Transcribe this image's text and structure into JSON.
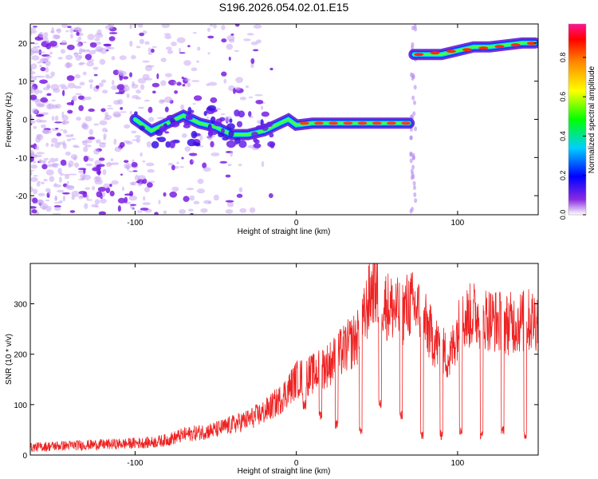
{
  "figure_title": "S196.2026.054.02.01.E15",
  "colors": {
    "snr_line": "#ee2222",
    "axis": "#000000",
    "background": "#ffffff"
  },
  "chart_data": [
    {
      "type": "heatmap",
      "title": "S196.2026.054.02.01.E15",
      "xlabel": "Height of straight line (km)",
      "ylabel": "Frequency (Hz)",
      "xlim": [
        -165,
        150
      ],
      "ylim": [
        -25,
        25
      ],
      "xticks": [
        -100,
        0,
        100
      ],
      "yticks": [
        -20,
        -10,
        0,
        10,
        20
      ],
      "colorbar": {
        "label": "Normalized spectral amplitude",
        "range": [
          0,
          0.97
        ],
        "ticks": [
          0.0,
          0.2,
          0.4,
          0.6,
          0.8
        ]
      },
      "ridge": [
        {
          "x": -100,
          "y": 0
        },
        {
          "x": -90,
          "y": -3
        },
        {
          "x": -80,
          "y": -1
        },
        {
          "x": -70,
          "y": 1
        },
        {
          "x": -60,
          "y": -1
        },
        {
          "x": -50,
          "y": -2
        },
        {
          "x": -40,
          "y": -4
        },
        {
          "x": -30,
          "y": -4
        },
        {
          "x": -20,
          "y": -3
        },
        {
          "x": -10,
          "y": -1
        },
        {
          "x": -5,
          "y": 0
        },
        {
          "x": 0,
          "y": -1.5
        },
        {
          "x": 10,
          "y": -1
        },
        {
          "x": 30,
          "y": -1
        },
        {
          "x": 50,
          "y": -1
        },
        {
          "x": 70,
          "y": -1
        },
        {
          "x": 73,
          "y": 17
        },
        {
          "x": 80,
          "y": 17
        },
        {
          "x": 90,
          "y": 17
        },
        {
          "x": 100,
          "y": 18
        },
        {
          "x": 110,
          "y": 19
        },
        {
          "x": 120,
          "y": 19
        },
        {
          "x": 130,
          "y": 19.5
        },
        {
          "x": 140,
          "y": 20
        },
        {
          "x": 148,
          "y": 20
        }
      ],
      "noise_region": [
        -165,
        -15
      ]
    },
    {
      "type": "line",
      "title": "",
      "xlabel": "Height of straight line (km)",
      "ylabel": "SNR (10 * v/v)",
      "xlim": [
        -165,
        150
      ],
      "ylim": [
        0,
        380
      ],
      "xticks": [
        -100,
        0,
        100
      ],
      "yticks": [
        0,
        100,
        200,
        300
      ],
      "series": [
        {
          "name": "SNR",
          "x": [
            -165,
            -150,
            -130,
            -110,
            -90,
            -80,
            -70,
            -60,
            -50,
            -40,
            -30,
            -20,
            -10,
            -5,
            0,
            10,
            20,
            30,
            40,
            45,
            48,
            55,
            60,
            65,
            70,
            75,
            80,
            85,
            90,
            95,
            100,
            105,
            110,
            120,
            130,
            140,
            150
          ],
          "values": [
            15,
            18,
            20,
            22,
            25,
            30,
            40,
            45,
            50,
            60,
            70,
            85,
            110,
            130,
            150,
            160,
            180,
            210,
            240,
            310,
            340,
            300,
            290,
            280,
            300,
            290,
            260,
            230,
            210,
            190,
            250,
            270,
            280,
            270,
            260,
            265,
            270
          ]
        }
      ],
      "dropouts": [
        {
          "x": 5,
          "y": 90
        },
        {
          "x": 15,
          "y": 70
        },
        {
          "x": 25,
          "y": 50
        },
        {
          "x": 40,
          "y": 40
        },
        {
          "x": 52,
          "y": 90
        },
        {
          "x": 65,
          "y": 70
        },
        {
          "x": 78,
          "y": 30
        },
        {
          "x": 90,
          "y": 30
        },
        {
          "x": 102,
          "y": 40
        },
        {
          "x": 115,
          "y": 30
        },
        {
          "x": 128,
          "y": 40
        },
        {
          "x": 142,
          "y": 30
        }
      ]
    }
  ]
}
